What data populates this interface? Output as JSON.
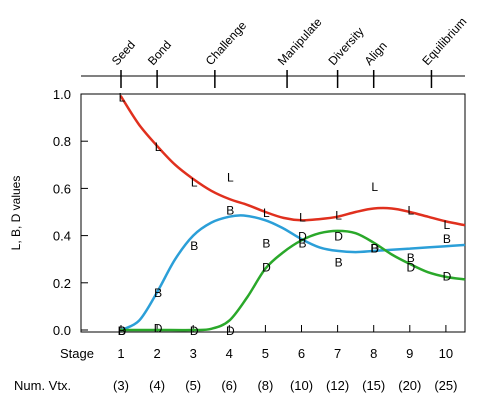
{
  "chart_data": {
    "type": "line",
    "ylabel": "L, B, D values",
    "ylim": [
      0,
      1.0
    ],
    "yticks": [
      0.0,
      0.2,
      0.4,
      0.6,
      0.8,
      1.0
    ],
    "xlim": [
      0.5,
      10.5
    ],
    "x": [
      1,
      2,
      3,
      4,
      5,
      6,
      7,
      8,
      9,
      10
    ],
    "bottom_row_title": "Stage",
    "stage_labels": [
      "1",
      "2",
      "3",
      "4",
      "5",
      "6",
      "7",
      "8",
      "9",
      "10"
    ],
    "vertex_row_title": "Num. Vtx.",
    "vertex_labels": [
      "(3)",
      "(4)",
      "(5)",
      "(6)",
      "(8)",
      "(10)",
      "(12)",
      "(15)",
      "(20)",
      "(25)"
    ],
    "top_stages": [
      {
        "name": "Seed",
        "x": 1
      },
      {
        "name": "Bond",
        "x": 2
      },
      {
        "name": "Challenge",
        "x": 3.6
      },
      {
        "name": "Manipulate",
        "x": 5.6
      },
      {
        "name": "Diversity",
        "x": 7
      },
      {
        "name": "Align",
        "x": 8
      },
      {
        "name": "Equilibrium",
        "x": 9.6
      }
    ],
    "series": [
      {
        "name": "L",
        "color": "#e0301e",
        "points": [
          [
            1,
            0.99
          ],
          [
            2,
            0.78
          ],
          [
            3,
            0.63
          ],
          [
            4,
            0.65
          ],
          [
            5,
            0.5
          ],
          [
            6,
            0.48
          ],
          [
            7,
            0.49
          ],
          [
            8,
            0.61
          ],
          [
            9,
            0.51
          ],
          [
            10,
            0.45
          ]
        ],
        "curve": [
          [
            1,
            0.99
          ],
          [
            1.5,
            0.87
          ],
          [
            2,
            0.78
          ],
          [
            2.5,
            0.7
          ],
          [
            3,
            0.64
          ],
          [
            3.5,
            0.59
          ],
          [
            4,
            0.555
          ],
          [
            4.5,
            0.53
          ],
          [
            5,
            0.5
          ],
          [
            5.5,
            0.475
          ],
          [
            6,
            0.465
          ],
          [
            6.5,
            0.47
          ],
          [
            7,
            0.48
          ],
          [
            7.5,
            0.5
          ],
          [
            8,
            0.515
          ],
          [
            8.5,
            0.515
          ],
          [
            9,
            0.5
          ],
          [
            9.5,
            0.48
          ],
          [
            10,
            0.46
          ],
          [
            10.5,
            0.445
          ]
        ]
      },
      {
        "name": "B",
        "color": "#2b9fd8",
        "points": [
          [
            1,
            0.0
          ],
          [
            2,
            0.16
          ],
          [
            3,
            0.36
          ],
          [
            4,
            0.51
          ],
          [
            5,
            0.37
          ],
          [
            6,
            0.37
          ],
          [
            7,
            0.29
          ],
          [
            8,
            0.35
          ],
          [
            9,
            0.31
          ],
          [
            10,
            0.39
          ]
        ],
        "curve": [
          [
            1,
            0.0
          ],
          [
            1.5,
            0.04
          ],
          [
            2,
            0.16
          ],
          [
            2.5,
            0.3
          ],
          [
            3,
            0.4
          ],
          [
            3.5,
            0.455
          ],
          [
            4,
            0.48
          ],
          [
            4.4,
            0.485
          ],
          [
            5,
            0.465
          ],
          [
            5.5,
            0.43
          ],
          [
            6,
            0.385
          ],
          [
            6.5,
            0.35
          ],
          [
            7,
            0.335
          ],
          [
            7.5,
            0.33
          ],
          [
            8,
            0.335
          ],
          [
            8.5,
            0.34
          ],
          [
            9,
            0.345
          ],
          [
            9.5,
            0.35
          ],
          [
            10,
            0.355
          ],
          [
            10.5,
            0.36
          ]
        ]
      },
      {
        "name": "D",
        "color": "#2aa82a",
        "points": [
          [
            1,
            0.0
          ],
          [
            2,
            0.01
          ],
          [
            3,
            0.0
          ],
          [
            4,
            0.0
          ],
          [
            5,
            0.27
          ],
          [
            6,
            0.4
          ],
          [
            7,
            0.4
          ],
          [
            8,
            0.35
          ],
          [
            9,
            0.27
          ],
          [
            10,
            0.23
          ]
        ],
        "curve": [
          [
            1,
            0.0
          ],
          [
            2,
            0.0
          ],
          [
            3,
            0.0
          ],
          [
            3.5,
            0.005
          ],
          [
            4,
            0.04
          ],
          [
            4.5,
            0.14
          ],
          [
            5,
            0.26
          ],
          [
            5.5,
            0.33
          ],
          [
            6,
            0.38
          ],
          [
            6.5,
            0.41
          ],
          [
            7,
            0.42
          ],
          [
            7.5,
            0.41
          ],
          [
            8,
            0.37
          ],
          [
            8.5,
            0.32
          ],
          [
            9,
            0.28
          ],
          [
            9.5,
            0.245
          ],
          [
            10,
            0.225
          ],
          [
            10.5,
            0.215
          ]
        ]
      }
    ]
  }
}
